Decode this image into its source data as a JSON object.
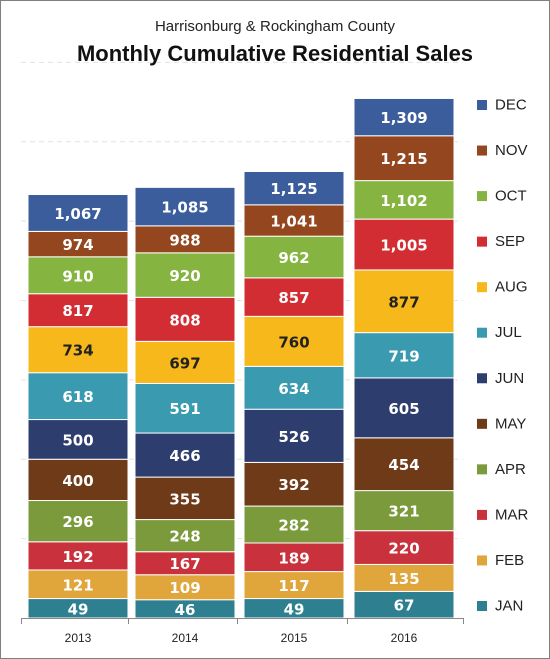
{
  "chart_data": {
    "type": "bar",
    "stacked": true,
    "subtitle": "Harrisonburg & Rockingham County",
    "title": "Monthly Cumulative Residential Sales",
    "xlabel": "",
    "ylabel": "",
    "categories": [
      "2013",
      "2014",
      "2015",
      "2016"
    ],
    "ylim": [
      0,
      1400
    ],
    "grid": true,
    "legend_position": "right",
    "series": [
      {
        "name": "JAN",
        "color": "#2e7f8f",
        "label_color": "#ffffff",
        "cumulative": [
          49,
          46,
          49,
          67
        ]
      },
      {
        "name": "FEB",
        "color": "#e0a63b",
        "label_color": "#ffffff",
        "cumulative": [
          121,
          109,
          117,
          135
        ]
      },
      {
        "name": "MAR",
        "color": "#c9313c",
        "label_color": "#ffffff",
        "cumulative": [
          192,
          167,
          189,
          220
        ]
      },
      {
        "name": "APR",
        "color": "#7a9a3c",
        "label_color": "#ffffff",
        "cumulative": [
          296,
          248,
          282,
          321
        ]
      },
      {
        "name": "MAY",
        "color": "#6e3a18",
        "label_color": "#ffffff",
        "cumulative": [
          400,
          355,
          392,
          454
        ]
      },
      {
        "name": "JUN",
        "color": "#2d3d6e",
        "label_color": "#ffffff",
        "cumulative": [
          500,
          466,
          526,
          605
        ]
      },
      {
        "name": "JUL",
        "color": "#3a9bb0",
        "label_color": "#ffffff",
        "cumulative": [
          618,
          591,
          634,
          719
        ]
      },
      {
        "name": "AUG",
        "color": "#f6b81b",
        "label_color": "#222222",
        "cumulative": [
          734,
          697,
          760,
          877
        ]
      },
      {
        "name": "SEP",
        "color": "#d12d33",
        "label_color": "#ffffff",
        "cumulative": [
          817,
          808,
          857,
          1005
        ]
      },
      {
        "name": "OCT",
        "color": "#86b441",
        "label_color": "#ffffff",
        "cumulative": [
          910,
          920,
          962,
          1102
        ]
      },
      {
        "name": "NOV",
        "color": "#94461f",
        "label_color": "#ffffff",
        "cumulative": [
          974,
          988,
          1041,
          1215
        ]
      },
      {
        "name": "DEC",
        "color": "#3c5d9c",
        "label_color": "#ffffff",
        "cumulative": [
          1067,
          1085,
          1125,
          1309
        ]
      }
    ]
  }
}
